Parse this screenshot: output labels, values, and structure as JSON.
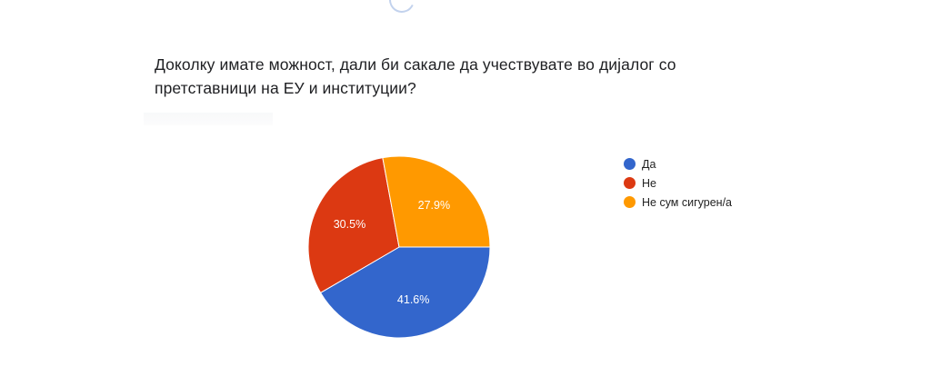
{
  "question": {
    "line1": "Доколку имате можност, дали би сакале да учествувате во дијалог со",
    "line2": "претставници на ЕУ и институции?"
  },
  "chart_data": {
    "type": "pie",
    "title": "Доколку имате можност, дали би сакале да учествувате во дијалог со претставници на ЕУ и институции?",
    "slices": [
      {
        "label": "Да",
        "value": 41.6,
        "display": "41.6%",
        "color": "#3366cc"
      },
      {
        "label": "Не",
        "value": 30.5,
        "display": "30.5%",
        "color": "#dc3912"
      },
      {
        "label": "Не сум сигурен/а",
        "value": 27.9,
        "display": "27.9%",
        "color": "#ff9900"
      }
    ],
    "legend_position": "right"
  }
}
